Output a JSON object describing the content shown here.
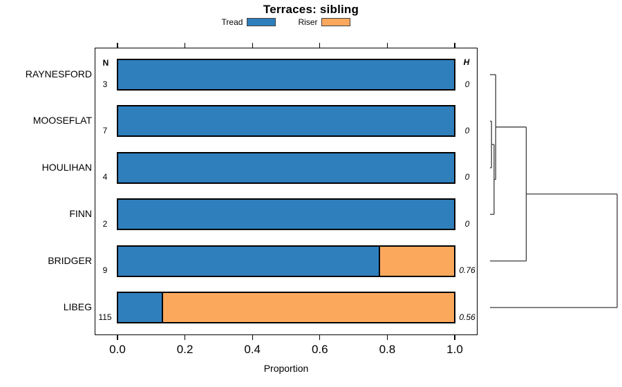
{
  "chart_data": {
    "type": "bar",
    "orientation": "horizontal_stacked",
    "title": "Terraces: sibling",
    "xlabel": "Proportion",
    "xlim": [
      0,
      1
    ],
    "xticks": [
      {
        "label": "0.0",
        "value": 0.0
      },
      {
        "label": "0.2",
        "value": 0.2
      },
      {
        "label": "0.4",
        "value": 0.4
      },
      {
        "label": "0.6",
        "value": 0.6
      },
      {
        "label": "0.8",
        "value": 0.8
      },
      {
        "label": "1.0",
        "value": 1.0
      }
    ],
    "legend": {
      "position": "top",
      "entries": [
        {
          "label": "Tread",
          "color": "#2F7FBC"
        },
        {
          "label": "Riser",
          "color": "#FBA85D"
        }
      ]
    },
    "columns": {
      "n_header": "N",
      "h_header": "H"
    },
    "rows": [
      {
        "label": "RAYNESFORD",
        "n": "3",
        "h": "0",
        "tread": 1.0,
        "riser": 0.0
      },
      {
        "label": "MOOSEFLAT",
        "n": "7",
        "h": "0",
        "tread": 1.0,
        "riser": 0.0
      },
      {
        "label": "HOULIHAN",
        "n": "4",
        "h": "0",
        "tread": 1.0,
        "riser": 0.0
      },
      {
        "label": "FINN",
        "n": "2",
        "h": "0",
        "tread": 1.0,
        "riser": 0.0
      },
      {
        "label": "BRIDGER",
        "n": "9",
        "h": "0.76",
        "tread": 0.775,
        "riser": 0.225
      },
      {
        "label": "LIBEG",
        "n": "115",
        "h": "0.56",
        "tread": 0.13,
        "riser": 0.87
      }
    ],
    "dendrogram": {
      "leaf_order": [
        "RAYNESFORD",
        "MOOSEFLAT",
        "HOULIHAN",
        "FINN",
        "BRIDGER",
        "LIBEG"
      ],
      "merges": [
        {
          "children": [
            "leaf-1",
            "leaf-2"
          ],
          "height": 0.012
        },
        {
          "children": [
            "merge-0",
            "leaf-3"
          ],
          "height": 0.032
        },
        {
          "children": [
            "leaf-0",
            "merge-1"
          ],
          "height": 0.045
        },
        {
          "children": [
            "merge-2",
            "leaf-4"
          ],
          "height": 0.285
        },
        {
          "children": [
            "merge-3",
            "leaf-5"
          ],
          "height": 1.0
        }
      ]
    },
    "colors": {
      "tread": "#2F7FBC",
      "riser": "#FBA85D",
      "bar_border": "#000000",
      "dendrogram_line": "#3C3C3C"
    }
  }
}
